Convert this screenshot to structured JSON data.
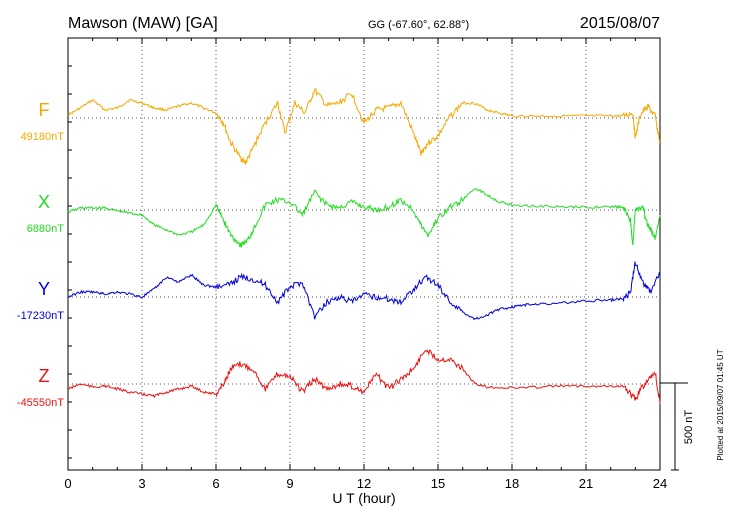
{
  "chart_data": {
    "type": "line",
    "title": "Mawson (MAW)  [GA]",
    "coords": "GG (-67.60°,  62.88°)",
    "date": "2015/08/07",
    "xlabel": "U T (hour)",
    "xlim": [
      0,
      24
    ],
    "xticks": [
      "0",
      "3",
      "6",
      "9",
      "12",
      "15",
      "18",
      "21",
      "24"
    ],
    "scale_label": "500 nT",
    "footnote": "Plotted at 2015/09/07 01:45 UT",
    "grid": true,
    "series": [
      {
        "name": "F",
        "baseline": "49180nT",
        "color": "#f5a800",
        "points": [
          [
            0,
            -3
          ],
          [
            0.5,
            -10
          ],
          [
            1,
            -18
          ],
          [
            1.5,
            -8
          ],
          [
            2,
            -10
          ],
          [
            2.5,
            -18
          ],
          [
            3,
            -15
          ],
          [
            3.5,
            -10
          ],
          [
            4,
            -8
          ],
          [
            4.5,
            -12
          ],
          [
            5,
            -15
          ],
          [
            5.5,
            -10
          ],
          [
            6,
            -5
          ],
          [
            6.3,
            5
          ],
          [
            6.6,
            25
          ],
          [
            7,
            40
          ],
          [
            7.2,
            45
          ],
          [
            7.5,
            30
          ],
          [
            8,
            5
          ],
          [
            8.5,
            -15
          ],
          [
            8.8,
            15
          ],
          [
            9.2,
            -15
          ],
          [
            9.6,
            -5
          ],
          [
            10,
            -28
          ],
          [
            10.5,
            -12
          ],
          [
            11,
            -15
          ],
          [
            11.5,
            -25
          ],
          [
            12,
            5
          ],
          [
            12.5,
            -8
          ],
          [
            13,
            -10
          ],
          [
            13.5,
            -15
          ],
          [
            14,
            15
          ],
          [
            14.3,
            35
          ],
          [
            14.6,
            25
          ],
          [
            15,
            18
          ],
          [
            15.5,
            -2
          ],
          [
            16,
            -15
          ],
          [
            16.5,
            -15
          ],
          [
            17,
            -8
          ],
          [
            17.5,
            -5
          ],
          [
            18,
            -2
          ],
          [
            19,
            -2
          ],
          [
            20,
            -2
          ],
          [
            21,
            -2
          ],
          [
            22,
            -2
          ],
          [
            22.5,
            -2
          ],
          [
            22.9,
            -5
          ],
          [
            23,
            20
          ],
          [
            23.2,
            -3
          ],
          [
            23.5,
            -12
          ],
          [
            23.8,
            -2
          ],
          [
            24,
            25
          ]
        ]
      },
      {
        "name": "X",
        "baseline": "6880nT",
        "color": "#22dd22",
        "points": [
          [
            0,
            2
          ],
          [
            0.5,
            -2
          ],
          [
            1,
            -2
          ],
          [
            1.5,
            -2
          ],
          [
            2,
            1
          ],
          [
            2.5,
            3
          ],
          [
            3,
            5
          ],
          [
            3.5,
            15
          ],
          [
            4,
            20
          ],
          [
            4.5,
            25
          ],
          [
            5,
            22
          ],
          [
            5.5,
            15
          ],
          [
            6,
            -5
          ],
          [
            6.3,
            10
          ],
          [
            6.6,
            25
          ],
          [
            7,
            35
          ],
          [
            7.3,
            30
          ],
          [
            7.6,
            15
          ],
          [
            8,
            -5
          ],
          [
            8.5,
            -10
          ],
          [
            9,
            -8
          ],
          [
            9.5,
            5
          ],
          [
            10,
            -18
          ],
          [
            10.5,
            -5
          ],
          [
            11,
            -2
          ],
          [
            11.5,
            -8
          ],
          [
            12,
            -3
          ],
          [
            12.5,
            0
          ],
          [
            13,
            -3
          ],
          [
            13.5,
            -10
          ],
          [
            14,
            0
          ],
          [
            14.3,
            15
          ],
          [
            14.6,
            25
          ],
          [
            15,
            8
          ],
          [
            15.5,
            -3
          ],
          [
            16,
            -10
          ],
          [
            16.5,
            -22
          ],
          [
            17,
            -15
          ],
          [
            17.5,
            -8
          ],
          [
            18,
            -5
          ],
          [
            19,
            -4
          ],
          [
            20,
            -3
          ],
          [
            21,
            -3
          ],
          [
            22,
            -3
          ],
          [
            22.5,
            -3
          ],
          [
            22.8,
            10
          ],
          [
            22.9,
            35
          ],
          [
            23,
            0
          ],
          [
            23.3,
            -2
          ],
          [
            23.5,
            15
          ],
          [
            23.8,
            28
          ],
          [
            24,
            5
          ]
        ]
      },
      {
        "name": "Y",
        "baseline": "-17230nT",
        "color": "#0000dd",
        "points": [
          [
            0,
            0
          ],
          [
            0.5,
            -5
          ],
          [
            1,
            -5
          ],
          [
            1.5,
            -3
          ],
          [
            2,
            -5
          ],
          [
            2.5,
            -3
          ],
          [
            3,
            0
          ],
          [
            3.5,
            -8
          ],
          [
            4,
            -20
          ],
          [
            4.5,
            -15
          ],
          [
            5,
            -22
          ],
          [
            5.5,
            -12
          ],
          [
            6,
            -10
          ],
          [
            6.5,
            -12
          ],
          [
            7,
            -20
          ],
          [
            7.5,
            -18
          ],
          [
            8,
            -12
          ],
          [
            8.5,
            5
          ],
          [
            9,
            -10
          ],
          [
            9.5,
            -15
          ],
          [
            10,
            20
          ],
          [
            10.5,
            5
          ],
          [
            11,
            0
          ],
          [
            11.5,
            5
          ],
          [
            12,
            -2
          ],
          [
            12.5,
            0
          ],
          [
            13,
            2
          ],
          [
            13.5,
            5
          ],
          [
            14,
            -8
          ],
          [
            14.5,
            -20
          ],
          [
            15,
            -12
          ],
          [
            15.5,
            5
          ],
          [
            16,
            15
          ],
          [
            16.5,
            22
          ],
          [
            17,
            18
          ],
          [
            17.5,
            12
          ],
          [
            18,
            10
          ],
          [
            18.5,
            8
          ],
          [
            19,
            7
          ],
          [
            20,
            6
          ],
          [
            21,
            4
          ],
          [
            22,
            3
          ],
          [
            22.5,
            2
          ],
          [
            22.8,
            -5
          ],
          [
            23,
            -35
          ],
          [
            23.3,
            -15
          ],
          [
            23.6,
            -5
          ],
          [
            24,
            -25
          ]
        ]
      },
      {
        "name": "Z",
        "baseline": "-45550nT",
        "color": "#ee1111",
        "points": [
          [
            0,
            5
          ],
          [
            0.5,
            0
          ],
          [
            1,
            3
          ],
          [
            1.5,
            2
          ],
          [
            2,
            5
          ],
          [
            2.5,
            8
          ],
          [
            3,
            10
          ],
          [
            3.5,
            12
          ],
          [
            4,
            8
          ],
          [
            4.5,
            5
          ],
          [
            5,
            2
          ],
          [
            5.5,
            8
          ],
          [
            6,
            10
          ],
          [
            6.3,
            0
          ],
          [
            6.6,
            -15
          ],
          [
            7,
            -20
          ],
          [
            7.5,
            -15
          ],
          [
            8,
            5
          ],
          [
            8.5,
            -10
          ],
          [
            9,
            -8
          ],
          [
            9.5,
            8
          ],
          [
            10,
            -5
          ],
          [
            10.5,
            5
          ],
          [
            11,
            0
          ],
          [
            11.5,
            2
          ],
          [
            12,
            8
          ],
          [
            12.5,
            -10
          ],
          [
            13,
            5
          ],
          [
            13.5,
            -5
          ],
          [
            14,
            -15
          ],
          [
            14.5,
            -35
          ],
          [
            15,
            -25
          ],
          [
            15.5,
            -25
          ],
          [
            16,
            -15
          ],
          [
            16.5,
            0
          ],
          [
            17,
            3
          ],
          [
            18,
            4
          ],
          [
            19,
            3
          ],
          [
            20,
            2
          ],
          [
            21,
            2
          ],
          [
            22,
            2
          ],
          [
            22.5,
            2
          ],
          [
            22.8,
            10
          ],
          [
            23,
            15
          ],
          [
            23.3,
            2
          ],
          [
            23.6,
            -5
          ],
          [
            23.8,
            -12
          ],
          [
            24,
            20
          ]
        ]
      }
    ]
  }
}
